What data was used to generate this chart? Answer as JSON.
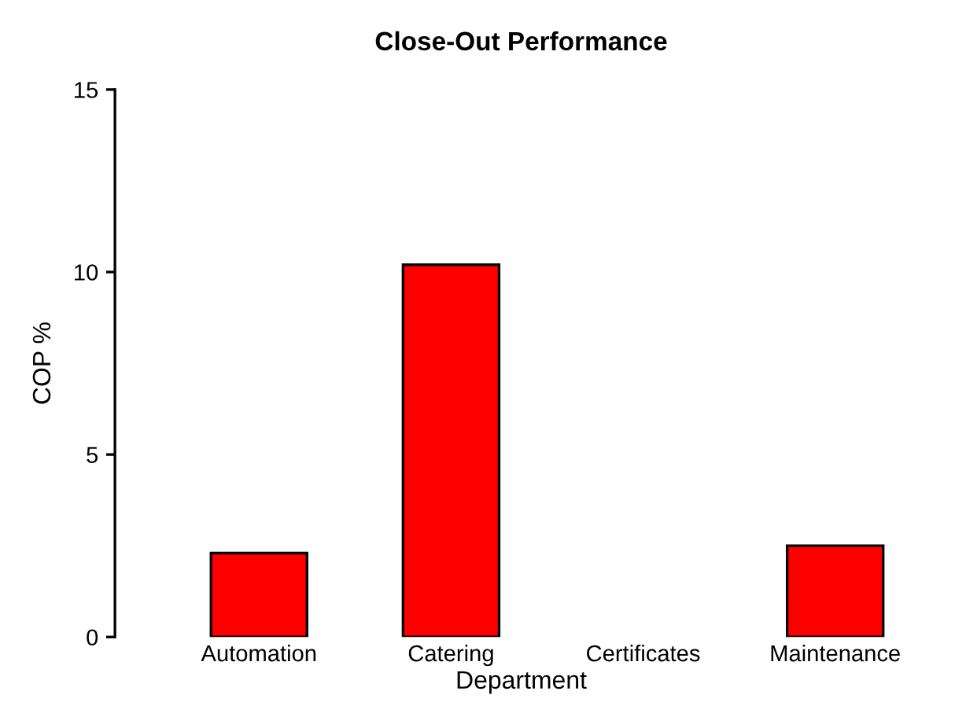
{
  "chart_data": {
    "type": "bar",
    "title": "Close-Out Performance",
    "xlabel": "Department",
    "ylabel": "COP %",
    "categories": [
      "Automation",
      "Catering",
      "Certificates",
      "Maintenance"
    ],
    "values": [
      2.3,
      10.2,
      0,
      2.5
    ],
    "color": "#ff0000",
    "ylim": [
      0,
      15
    ],
    "yticks": [
      0,
      5,
      10,
      15
    ],
    "grid": false
  }
}
